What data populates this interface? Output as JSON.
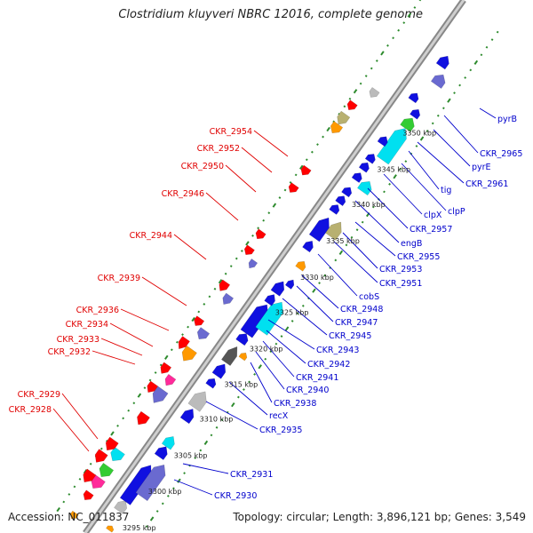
{
  "title": "Clostridium kluyveri NBRC 12016, complete genome",
  "footer": {
    "accession": "Accession: NC_011837",
    "summary": "Topology: circular; Length: 3,896,121 bp; Genes: 3,549"
  },
  "colors": {
    "backbone": "#a8a8a8",
    "forward_label": "#0000cc",
    "reverse_label": "#e00000",
    "tick_mark": "#2e8b2e",
    "blue": "#1010e0",
    "cyan": "#00e0f0",
    "red": "#ff0000",
    "magenta": "#ff2a9a",
    "green": "#33cc33",
    "orange": "#ff9900",
    "olive": "#b8b070",
    "slate": "#6a6ad0",
    "grey": "#bbbbbb"
  },
  "scale_labels": [
    "3295 kbp",
    "3300 kbp",
    "3305 kbp",
    "3310 kbp",
    "3315 kbp",
    "3320 kbp",
    "3325 kbp",
    "3330 kbp",
    "3335 kbp",
    "3340 kbp",
    "3345 kbp",
    "3350 kbp"
  ],
  "forward_labels": [
    "CKR_2930",
    "CKR_2931",
    "CKR_2935",
    "recX",
    "CKR_2938",
    "CKR_2940",
    "CKR_2941",
    "CKR_2942",
    "CKR_2943",
    "CKR_2945",
    "CKR_2947",
    "CKR_2948",
    "cobS",
    "CKR_2951",
    "CKR_2953",
    "CKR_2955",
    "engB",
    "CKR_2957",
    "clpX",
    "clpP",
    "tig",
    "CKR_2961",
    "pyrE",
    "CKR_2965",
    "pyrB"
  ],
  "reverse_labels": [
    "CKR_2928",
    "CKR_2929",
    "CKR_2932",
    "CKR_2933",
    "CKR_2934",
    "CKR_2936",
    "CKR_2939",
    "CKR_2944",
    "CKR_2946",
    "CKR_2950",
    "CKR_2952",
    "CKR_2954"
  ]
}
